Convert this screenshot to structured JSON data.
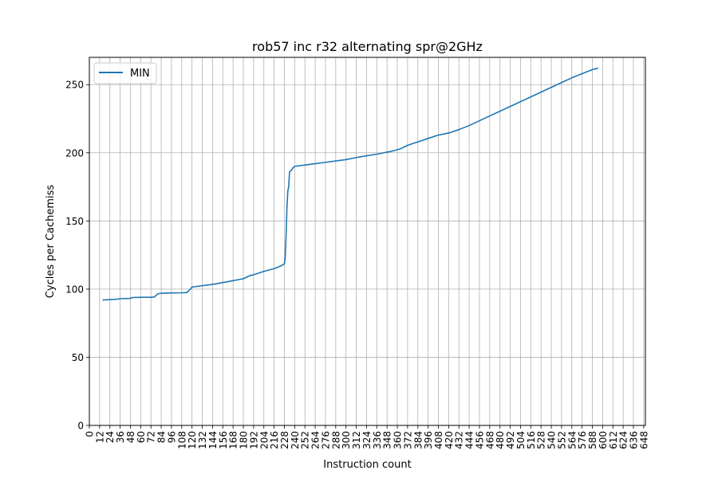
{
  "chart_data": {
    "type": "line",
    "title": "rob57 inc r32 alternating spr@2GHz",
    "xlabel": "Instruction count",
    "ylabel": "Cycles per Cachemiss",
    "xlim": [
      0,
      650
    ],
    "ylim": [
      0,
      270
    ],
    "x_ticks": [
      "0",
      "12",
      "24",
      "36",
      "48",
      "60",
      "72",
      "84",
      "96",
      "108",
      "120",
      "132",
      "144",
      "156",
      "168",
      "180",
      "192",
      "204",
      "216",
      "228",
      "240",
      "252",
      "264",
      "276",
      "288",
      "300",
      "312",
      "324",
      "336",
      "348",
      "360",
      "372",
      "384",
      "396",
      "408",
      "420",
      "432",
      "444",
      "456",
      "468",
      "480",
      "492",
      "504",
      "516",
      "528",
      "540",
      "552",
      "564",
      "576",
      "588",
      "600",
      "612",
      "624",
      "636",
      "648"
    ],
    "y_ticks": [
      "0",
      "50",
      "100",
      "150",
      "200",
      "250"
    ],
    "grid": true,
    "legend_position": "top-left",
    "colors": {
      "MIN": "#1f77b4"
    },
    "series": [
      {
        "name": "MIN",
        "points": [
          [
            16,
            92
          ],
          [
            24,
            92.3
          ],
          [
            32,
            92.6
          ],
          [
            36,
            93
          ],
          [
            48,
            93.2
          ],
          [
            50,
            93.8
          ],
          [
            60,
            94
          ],
          [
            72,
            94
          ],
          [
            76,
            94.2
          ],
          [
            80,
            96.5
          ],
          [
            84,
            97
          ],
          [
            96,
            97.2
          ],
          [
            108,
            97.3
          ],
          [
            114,
            97.5
          ],
          [
            118,
            100
          ],
          [
            120,
            101.5
          ],
          [
            132,
            102.5
          ],
          [
            144,
            103.5
          ],
          [
            156,
            104.8
          ],
          [
            168,
            106.2
          ],
          [
            180,
            107.6
          ],
          [
            188,
            110
          ],
          [
            192,
            110.5
          ],
          [
            204,
            113
          ],
          [
            216,
            115
          ],
          [
            224,
            117
          ],
          [
            228,
            118.5
          ],
          [
            229,
            124
          ],
          [
            230,
            140
          ],
          [
            231,
            160
          ],
          [
            232,
            172
          ],
          [
            233,
            175
          ],
          [
            234,
            186
          ],
          [
            236,
            187
          ],
          [
            238,
            189
          ],
          [
            240,
            190
          ],
          [
            252,
            191
          ],
          [
            264,
            192
          ],
          [
            276,
            193
          ],
          [
            288,
            194
          ],
          [
            300,
            195
          ],
          [
            312,
            196.5
          ],
          [
            324,
            197.8
          ],
          [
            336,
            199
          ],
          [
            348,
            200.5
          ],
          [
            356,
            201.5
          ],
          [
            364,
            203
          ],
          [
            372,
            205.5
          ],
          [
            384,
            208
          ],
          [
            396,
            210.5
          ],
          [
            408,
            213
          ],
          [
            420,
            214.5
          ],
          [
            432,
            217
          ],
          [
            444,
            220
          ],
          [
            456,
            223.5
          ],
          [
            468,
            227
          ],
          [
            480,
            230.5
          ],
          [
            492,
            234
          ],
          [
            504,
            237.5
          ],
          [
            516,
            241
          ],
          [
            528,
            244.5
          ],
          [
            540,
            248
          ],
          [
            552,
            251.5
          ],
          [
            564,
            255
          ],
          [
            576,
            258
          ],
          [
            588,
            261
          ],
          [
            594,
            262
          ]
        ]
      }
    ]
  }
}
